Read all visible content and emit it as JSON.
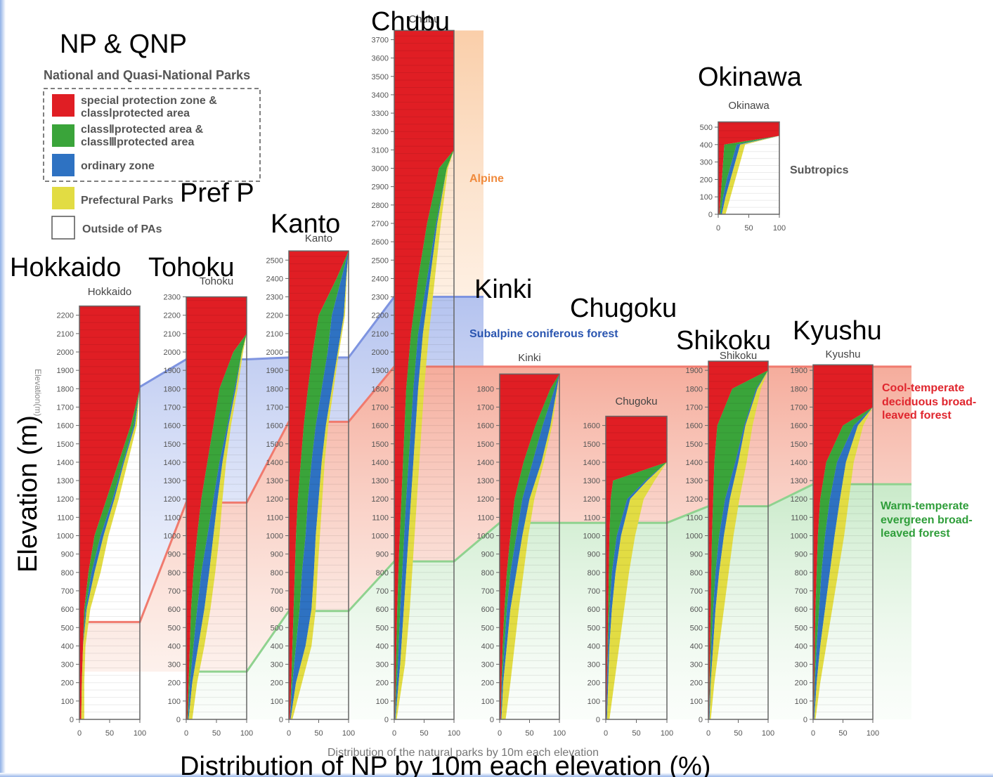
{
  "legend": {
    "np_title": "NP & QNP",
    "heading": "National and Quasi-National Parks",
    "items": [
      {
        "line1": "special protection zone &",
        "line2": "classⅠprotected area",
        "color": "#e01e24"
      },
      {
        "line1": "classⅡprotected area &",
        "line2": "classⅢprotected area",
        "color": "#3aa43a"
      },
      {
        "line1": "ordinary zone",
        "line2": "",
        "color": "#2e72c2"
      }
    ],
    "pref_label": "Prefectural Parks",
    "pref_title": "Pref  P",
    "pref_color": "#e2dc43",
    "outside_label": "Outside of PAs"
  },
  "y_axis_title": "Elevation (m)",
  "y_axis_small": "Elevation(m)",
  "x_axis_title": "Distribution of NP by 10m each elevation (%)",
  "x_axis_small": "Distribution of the natural parks by 10m each elevation",
  "zones": {
    "alpine": "Alpine",
    "subalpine": "Subalpine coniferous forest",
    "cool_1": "Cool-temperate",
    "cool_2": "deciduous broad-",
    "cool_3": "leaved forest",
    "warm_1": "Warm-temperate",
    "warm_2": "evergreen broad-",
    "warm_3": "leaved forest",
    "subtropics": "Subtropics"
  },
  "colors": {
    "alpine": "#f7b884",
    "subalpine": "#4a6fd0",
    "cool": "#f08070",
    "warm": "#79c979",
    "red": "#e01e24",
    "green": "#3aa43a",
    "blue": "#2e72c2",
    "yellow": "#e2dc43"
  },
  "chart_data": [
    {
      "type": "area",
      "region": "Hokkaido",
      "big_label": "Hokkaido",
      "small_label": "Hokkaido",
      "ylim": [
        0,
        2250
      ],
      "yticks": [
        0,
        100,
        200,
        300,
        400,
        500,
        600,
        700,
        800,
        900,
        1000,
        1100,
        1200,
        1300,
        1400,
        1500,
        1600,
        1700,
        1800,
        1900,
        2000,
        2100,
        2200
      ],
      "xticks": [
        0,
        50,
        100
      ],
      "xlabel": "",
      "ylabel": "",
      "profile": [
        [
          0,
          3,
          3,
          3,
          8
        ],
        [
          200,
          4,
          4,
          4,
          8
        ],
        [
          400,
          6,
          6,
          6,
          10
        ],
        [
          600,
          8,
          10,
          12,
          18
        ],
        [
          800,
          15,
          20,
          25,
          35
        ],
        [
          1000,
          25,
          35,
          40,
          48
        ],
        [
          1200,
          45,
          55,
          58,
          65
        ],
        [
          1400,
          65,
          72,
          74,
          80
        ],
        [
          1600,
          85,
          90,
          92,
          95
        ],
        [
          1800,
          100,
          100,
          100,
          100
        ],
        [
          2250,
          100,
          100,
          100,
          100
        ]
      ]
    },
    {
      "type": "area",
      "region": "Tohoku",
      "big_label": "Tohoku",
      "small_label": "Tohoku",
      "ylim": [
        0,
        2300
      ],
      "yticks": [
        0,
        100,
        200,
        300,
        400,
        500,
        600,
        700,
        800,
        900,
        1000,
        1100,
        1200,
        1300,
        1400,
        1500,
        1600,
        1700,
        1800,
        1900,
        2000,
        2100,
        2200,
        2300
      ],
      "xticks": [
        0,
        50,
        100
      ],
      "xlabel": "",
      "ylabel": "",
      "profile": [
        [
          0,
          2,
          3,
          4,
          10
        ],
        [
          200,
          4,
          6,
          10,
          18
        ],
        [
          400,
          6,
          12,
          20,
          30
        ],
        [
          600,
          8,
          18,
          30,
          40
        ],
        [
          800,
          12,
          25,
          38,
          48
        ],
        [
          1000,
          18,
          35,
          45,
          55
        ],
        [
          1200,
          25,
          45,
          52,
          60
        ],
        [
          1400,
          35,
          55,
          60,
          66
        ],
        [
          1600,
          45,
          68,
          70,
          74
        ],
        [
          1800,
          55,
          80,
          82,
          85
        ],
        [
          2000,
          78,
          92,
          92,
          94
        ],
        [
          2100,
          100,
          100,
          100,
          100
        ],
        [
          2300,
          100,
          100,
          100,
          100
        ]
      ]
    },
    {
      "type": "area",
      "region": "Kanto",
      "big_label": "Kanto",
      "small_label": "Kanto",
      "ylim": [
        0,
        2550
      ],
      "yticks": [
        0,
        100,
        200,
        300,
        400,
        500,
        600,
        700,
        800,
        900,
        1000,
        1100,
        1200,
        1300,
        1400,
        1500,
        1600,
        1700,
        1800,
        1900,
        2000,
        2100,
        2200,
        2300,
        2400,
        2500
      ],
      "xticks": [
        0,
        50,
        100
      ],
      "xlabel": "",
      "ylabel": "",
      "profile": [
        [
          0,
          2,
          2,
          3,
          6
        ],
        [
          200,
          4,
          6,
          12,
          22
        ],
        [
          400,
          6,
          12,
          28,
          38
        ],
        [
          600,
          8,
          18,
          38,
          45
        ],
        [
          800,
          10,
          22,
          42,
          48
        ],
        [
          1000,
          12,
          28,
          45,
          52
        ],
        [
          1200,
          15,
          32,
          50,
          56
        ],
        [
          1400,
          20,
          38,
          55,
          60
        ],
        [
          1600,
          25,
          45,
          62,
          66
        ],
        [
          1800,
          32,
          55,
          72,
          75
        ],
        [
          2000,
          40,
          65,
          82,
          84
        ],
        [
          2200,
          50,
          72,
          92,
          94
        ],
        [
          2400,
          80,
          88,
          96,
          97
        ],
        [
          2550,
          100,
          100,
          100,
          100
        ]
      ]
    },
    {
      "type": "area",
      "region": "Chubu",
      "big_label": "Chubu",
      "small_label": "Chubu",
      "ylim": [
        0,
        3750
      ],
      "yticks": [
        0,
        100,
        200,
        300,
        400,
        500,
        600,
        700,
        800,
        900,
        1000,
        1100,
        1200,
        1300,
        1400,
        1500,
        1600,
        1700,
        1800,
        1900,
        2000,
        2100,
        2200,
        2300,
        2400,
        2500,
        2600,
        2700,
        2800,
        2900,
        3000,
        3100,
        3200,
        3300,
        3400,
        3500,
        3600,
        3700
      ],
      "xticks": [
        0,
        50,
        100
      ],
      "xlabel": "",
      "ylabel": "",
      "profile": [
        [
          0,
          1,
          1,
          2,
          4
        ],
        [
          300,
          3,
          6,
          10,
          18
        ],
        [
          600,
          5,
          10,
          16,
          26
        ],
        [
          900,
          8,
          15,
          22,
          32
        ],
        [
          1200,
          12,
          20,
          28,
          38
        ],
        [
          1500,
          16,
          26,
          34,
          44
        ],
        [
          1800,
          20,
          32,
          40,
          50
        ],
        [
          2100,
          28,
          40,
          48,
          58
        ],
        [
          2400,
          40,
          55,
          60,
          68
        ],
        [
          2700,
          55,
          70,
          72,
          78
        ],
        [
          3000,
          75,
          88,
          88,
          90
        ],
        [
          3100,
          100,
          100,
          100,
          100
        ],
        [
          3750,
          100,
          100,
          100,
          100
        ]
      ]
    },
    {
      "type": "area",
      "region": "Kinki",
      "big_label": "Kinki",
      "small_label": "Kinki",
      "ylim": [
        0,
        1880
      ],
      "yticks": [
        0,
        100,
        200,
        300,
        400,
        500,
        600,
        700,
        800,
        900,
        1000,
        1100,
        1200,
        1300,
        1400,
        1500,
        1600,
        1700,
        1800
      ],
      "xticks": [
        0,
        50,
        100
      ],
      "xlabel": "",
      "ylabel": "",
      "profile": [
        [
          0,
          2,
          2,
          3,
          10
        ],
        [
          200,
          3,
          4,
          6,
          18
        ],
        [
          400,
          5,
          8,
          12,
          25
        ],
        [
          600,
          8,
          12,
          18,
          32
        ],
        [
          800,
          12,
          18,
          28,
          40
        ],
        [
          1000,
          18,
          28,
          38,
          48
        ],
        [
          1200,
          25,
          38,
          50,
          58
        ],
        [
          1400,
          40,
          55,
          70,
          74
        ],
        [
          1600,
          60,
          72,
          85,
          88
        ],
        [
          1800,
          85,
          92,
          96,
          97
        ],
        [
          1880,
          100,
          100,
          100,
          100
        ]
      ]
    },
    {
      "type": "area",
      "region": "Chugoku",
      "big_label": "Chugoku",
      "small_label": "Chugoku",
      "ylim": [
        0,
        1650
      ],
      "yticks": [
        0,
        100,
        200,
        300,
        400,
        500,
        600,
        700,
        800,
        900,
        1000,
        1100,
        1200,
        1300,
        1400,
        1500,
        1600
      ],
      "xticks": [
        0,
        50,
        100
      ],
      "xlabel": "",
      "ylabel": "",
      "profile": [
        [
          0,
          1,
          1,
          2,
          6
        ],
        [
          200,
          2,
          2,
          4,
          14
        ],
        [
          400,
          3,
          4,
          6,
          22
        ],
        [
          600,
          4,
          6,
          10,
          30
        ],
        [
          800,
          5,
          10,
          16,
          38
        ],
        [
          1000,
          6,
          18,
          25,
          48
        ],
        [
          1200,
          8,
          35,
          40,
          62
        ],
        [
          1300,
          12,
          65,
          68,
          80
        ],
        [
          1400,
          100,
          100,
          100,
          100
        ],
        [
          1650,
          100,
          100,
          100,
          100
        ]
      ]
    },
    {
      "type": "area",
      "region": "Shikoku",
      "big_label": "Shikoku",
      "small_label": "Shikoku",
      "ylim": [
        0,
        1950
      ],
      "yticks": [
        0,
        100,
        200,
        300,
        400,
        500,
        600,
        700,
        800,
        900,
        1000,
        1100,
        1200,
        1300,
        1400,
        1500,
        1600,
        1700,
        1800,
        1900
      ],
      "xticks": [
        0,
        50,
        100
      ],
      "xlabel": "",
      "ylabel": "",
      "profile": [
        [
          0,
          1,
          1,
          2,
          4
        ],
        [
          200,
          2,
          3,
          4,
          10
        ],
        [
          400,
          3,
          5,
          8,
          18
        ],
        [
          600,
          4,
          8,
          12,
          26
        ],
        [
          800,
          5,
          12,
          18,
          34
        ],
        [
          1000,
          6,
          18,
          26,
          42
        ],
        [
          1200,
          8,
          28,
          36,
          52
        ],
        [
          1400,
          10,
          45,
          50,
          64
        ],
        [
          1600,
          15,
          60,
          62,
          74
        ],
        [
          1800,
          40,
          80,
          82,
          88
        ],
        [
          1900,
          100,
          100,
          100,
          100
        ],
        [
          1950,
          100,
          100,
          100,
          100
        ]
      ]
    },
    {
      "type": "area",
      "region": "Kyushu",
      "big_label": "Kyushu",
      "small_label": "Kyushu",
      "ylim": [
        0,
        1930
      ],
      "yticks": [
        0,
        100,
        200,
        300,
        400,
        500,
        600,
        700,
        800,
        900,
        1000,
        1100,
        1200,
        1300,
        1400,
        1500,
        1600,
        1700,
        1800,
        1900
      ],
      "xticks": [
        0,
        50,
        100
      ],
      "xlabel": "",
      "ylabel": "",
      "profile": [
        [
          0,
          1,
          1,
          2,
          4
        ],
        [
          200,
          2,
          3,
          6,
          12
        ],
        [
          400,
          3,
          6,
          12,
          22
        ],
        [
          600,
          4,
          10,
          20,
          32
        ],
        [
          800,
          6,
          14,
          28,
          42
        ],
        [
          1000,
          8,
          20,
          36,
          52
        ],
        [
          1200,
          12,
          28,
          45,
          60
        ],
        [
          1400,
          22,
          40,
          55,
          68
        ],
        [
          1600,
          50,
          68,
          75,
          84
        ],
        [
          1700,
          100,
          100,
          100,
          100
        ],
        [
          1930,
          100,
          100,
          100,
          100
        ]
      ]
    },
    {
      "type": "area",
      "region": "Okinawa",
      "big_label": "Okinawa",
      "small_label": "Okinawa",
      "ylim": [
        0,
        530
      ],
      "yticks": [
        0,
        100,
        200,
        300,
        400,
        500
      ],
      "xticks": [
        0,
        50,
        100
      ],
      "xlabel": "",
      "ylabel": "",
      "profile": [
        [
          0,
          2,
          4,
          6,
          12
        ],
        [
          100,
          4,
          8,
          12,
          20
        ],
        [
          200,
          6,
          14,
          20,
          28
        ],
        [
          300,
          8,
          22,
          28,
          36
        ],
        [
          400,
          10,
          30,
          36,
          44
        ],
        [
          450,
          100,
          100,
          100,
          100
        ],
        [
          530,
          100,
          100,
          100,
          100
        ]
      ]
    }
  ]
}
